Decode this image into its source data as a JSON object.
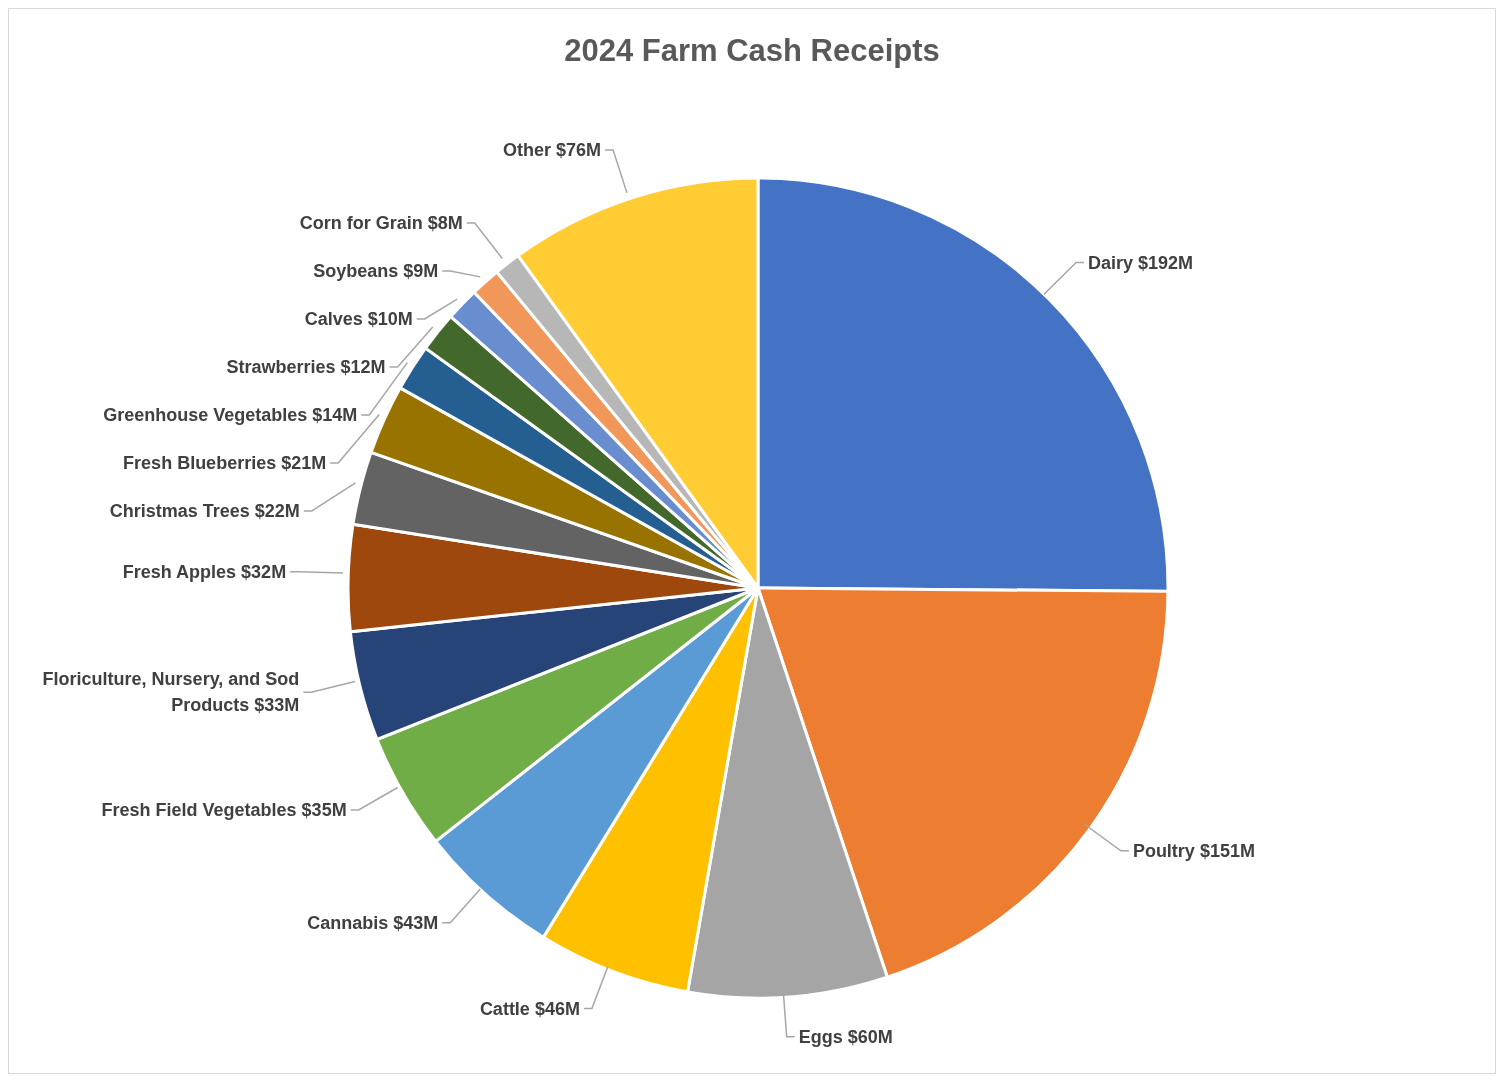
{
  "chart_data": {
    "type": "pie",
    "title": "2024 Farm Cash Receipts",
    "categories": [
      "Dairy",
      "Poultry",
      "Eggs",
      "Cattle",
      "Cannabis",
      "Fresh Field Vegetables",
      "Floriculture, Nursery, and Sod Products",
      "Fresh Apples",
      "Christmas Trees",
      "Fresh Blueberries",
      "Greenhouse Vegetables",
      "Strawberries",
      "Calves",
      "Soybeans",
      "Corn for Grain",
      "Other"
    ],
    "values": [
      192,
      151,
      60,
      46,
      43,
      35,
      33,
      32,
      22,
      21,
      14,
      12,
      10,
      9,
      8,
      76
    ],
    "value_labels": [
      "$192M",
      "$151M",
      "$60M",
      "$46M",
      "$43M",
      "$35M",
      "$33M",
      "$32M",
      "$22M",
      "$21M",
      "$14M",
      "$12M",
      "$10M",
      "$9M",
      "$8M",
      "$76M"
    ],
    "colors": [
      "#4472c4",
      "#ed7d31",
      "#a5a5a5",
      "#ffc000",
      "#5b9bd5",
      "#70ad47",
      "#264478",
      "#9e480e",
      "#636363",
      "#997300",
      "#255e91",
      "#43682b",
      "#698ed0",
      "#f1975a",
      "#b7b7b7",
      "#ffcd33"
    ],
    "legend": false
  }
}
